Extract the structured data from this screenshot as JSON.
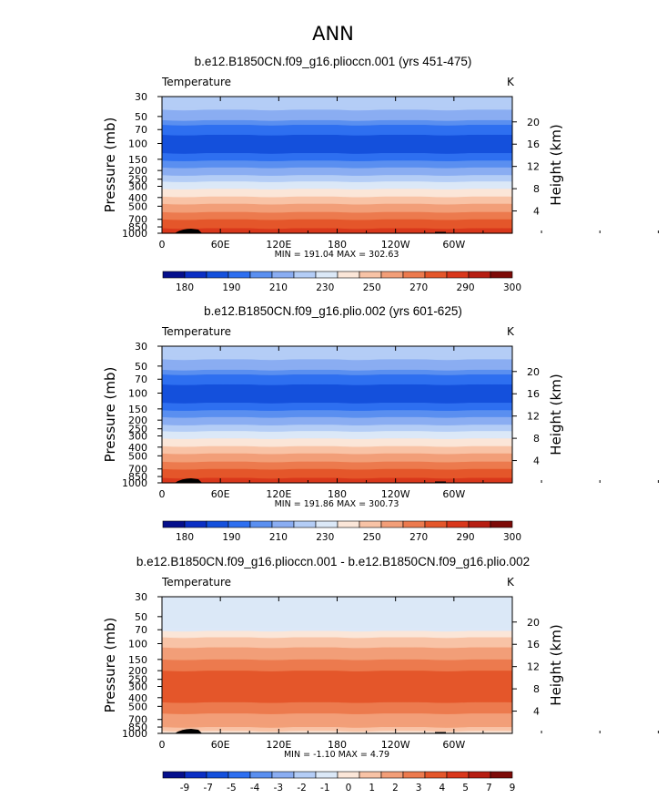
{
  "figure_title": "ANN",
  "chart_data": [
    {
      "type": "heatmap",
      "title": "b.e12.B1850CN.f09_g16.plioccn.001 (yrs 451-475)",
      "variable_label": "Temperature",
      "units": "K",
      "ylabel": "Pressure  (mb)",
      "y2label": "Height  (km)",
      "x_tick_labels": [
        "0",
        "60E",
        "120E",
        "180",
        "120W",
        "60W"
      ],
      "y_tick_labels": [
        "30",
        "50",
        "70",
        "100",
        "150",
        "200",
        "250",
        "300",
        "400",
        "500",
        "700",
        "850",
        "1000"
      ],
      "y2_tick_labels": [
        "20",
        "16",
        "12",
        "8",
        "4"
      ],
      "min_max_text": "MIN = 191.04   MAX = 302.63",
      "min": 191.04,
      "max": 302.63,
      "colorbar_labels": [
        "180",
        "190",
        "210",
        "230",
        "250",
        "270",
        "290",
        "300"
      ],
      "colorbar_colors": [
        "#050f8c",
        "#0b2fc4",
        "#1450dc",
        "#2e6ff0",
        "#5a8ff0",
        "#8aadf2",
        "#b4cdf6",
        "#dbe8f7",
        "#fbe6d8",
        "#f8c3a6",
        "#f29e78",
        "#ec7a4e",
        "#e4562a",
        "#d9371b",
        "#b61e12",
        "#7d0b08"
      ],
      "profile": [
        {
          "p": 30,
          "k": 6
        },
        {
          "p": 42,
          "k": 5
        },
        {
          "p": 55,
          "k": 4
        },
        {
          "p": 62,
          "k": 3
        },
        {
          "p": 80,
          "k": 2
        },
        {
          "p": 128,
          "k": 3
        },
        {
          "p": 155,
          "k": 4
        },
        {
          "p": 185,
          "k": 5
        },
        {
          "p": 225,
          "k": 6
        },
        {
          "p": 265,
          "k": 7
        },
        {
          "p": 320,
          "k": 8
        },
        {
          "p": 390,
          "k": 9
        },
        {
          "p": 470,
          "k": 10
        },
        {
          "p": 580,
          "k": 11
        },
        {
          "p": 700,
          "k": 12
        },
        {
          "p": 880,
          "k": 13
        },
        {
          "p": 1000,
          "k": 13
        }
      ]
    },
    {
      "type": "heatmap",
      "title": "b.e12.B1850CN.f09_g16.plio.002 (yrs 601-625)",
      "variable_label": "Temperature",
      "units": "K",
      "ylabel": "Pressure  (mb)",
      "y2label": "Height  (km)",
      "x_tick_labels": [
        "0",
        "60E",
        "120E",
        "180",
        "120W",
        "60W"
      ],
      "y_tick_labels": [
        "30",
        "50",
        "70",
        "100",
        "150",
        "200",
        "250",
        "300",
        "400",
        "500",
        "700",
        "850",
        "1000"
      ],
      "y2_tick_labels": [
        "20",
        "16",
        "12",
        "8",
        "4"
      ],
      "min_max_text": "MIN = 191.86   MAX = 300.73",
      "min": 191.86,
      "max": 300.73,
      "colorbar_labels": [
        "180",
        "190",
        "210",
        "230",
        "250",
        "270",
        "290",
        "300"
      ],
      "colorbar_colors": [
        "#050f8c",
        "#0b2fc4",
        "#1450dc",
        "#2e6ff0",
        "#5a8ff0",
        "#8aadf2",
        "#b4cdf6",
        "#dbe8f7",
        "#fbe6d8",
        "#f8c3a6",
        "#f29e78",
        "#ec7a4e",
        "#e4562a",
        "#d9371b",
        "#b61e12",
        "#7d0b08"
      ],
      "profile": [
        {
          "p": 30,
          "k": 6
        },
        {
          "p": 42,
          "k": 5
        },
        {
          "p": 55,
          "k": 4
        },
        {
          "p": 62,
          "k": 3
        },
        {
          "p": 80,
          "k": 2
        },
        {
          "p": 128,
          "k": 3
        },
        {
          "p": 155,
          "k": 4
        },
        {
          "p": 185,
          "k": 5
        },
        {
          "p": 225,
          "k": 6
        },
        {
          "p": 265,
          "k": 7
        },
        {
          "p": 320,
          "k": 8
        },
        {
          "p": 390,
          "k": 9
        },
        {
          "p": 470,
          "k": 10
        },
        {
          "p": 580,
          "k": 11
        },
        {
          "p": 700,
          "k": 12
        },
        {
          "p": 880,
          "k": 13
        },
        {
          "p": 1000,
          "k": 13
        }
      ]
    },
    {
      "type": "heatmap",
      "title": "b.e12.B1850CN.f09_g16.plioccn.001 - b.e12.B1850CN.f09_g16.plio.002",
      "variable_label": "Temperature",
      "units": "K",
      "ylabel": "Pressure  (mb)",
      "y2label": "Height  (km)",
      "x_tick_labels": [
        "0",
        "60E",
        "120E",
        "180",
        "120W",
        "60W"
      ],
      "y_tick_labels": [
        "30",
        "50",
        "70",
        "100",
        "150",
        "200",
        "250",
        "300",
        "400",
        "500",
        "700",
        "850",
        "1000"
      ],
      "y2_tick_labels": [
        "20",
        "16",
        "12",
        "8",
        "4"
      ],
      "min_max_text": "MIN =   -1.10   MAX =     4.79",
      "min": -1.1,
      "max": 4.79,
      "colorbar_labels": [
        "-9",
        "-7",
        "-5",
        "-4",
        "-3",
        "-2",
        "-1",
        "0",
        "1",
        "2",
        "3",
        "4",
        "5",
        "7",
        "9"
      ],
      "colorbar_colors": [
        "#050f8c",
        "#0b2fc4",
        "#1450dc",
        "#2e6ff0",
        "#5a8ff0",
        "#8aadf2",
        "#b4cdf6",
        "#dbe8f7",
        "#fbe6d8",
        "#f8c3a6",
        "#f29e78",
        "#ec7a4e",
        "#e4562a",
        "#d9371b",
        "#b61e12",
        "#7d0b08"
      ],
      "profile": [
        {
          "p": 30,
          "k": 7
        },
        {
          "p": 68,
          "k": 7
        },
        {
          "p": 72,
          "k": 8
        },
        {
          "p": 85,
          "k": 9
        },
        {
          "p": 110,
          "k": 10
        },
        {
          "p": 150,
          "k": 11
        },
        {
          "p": 200,
          "k": 12
        },
        {
          "p": 380,
          "k": 12
        },
        {
          "p": 450,
          "k": 11
        },
        {
          "p": 600,
          "k": 10
        },
        {
          "p": 850,
          "k": 9
        },
        {
          "p": 940,
          "k": 8
        },
        {
          "p": 1000,
          "k": 9
        }
      ]
    }
  ]
}
